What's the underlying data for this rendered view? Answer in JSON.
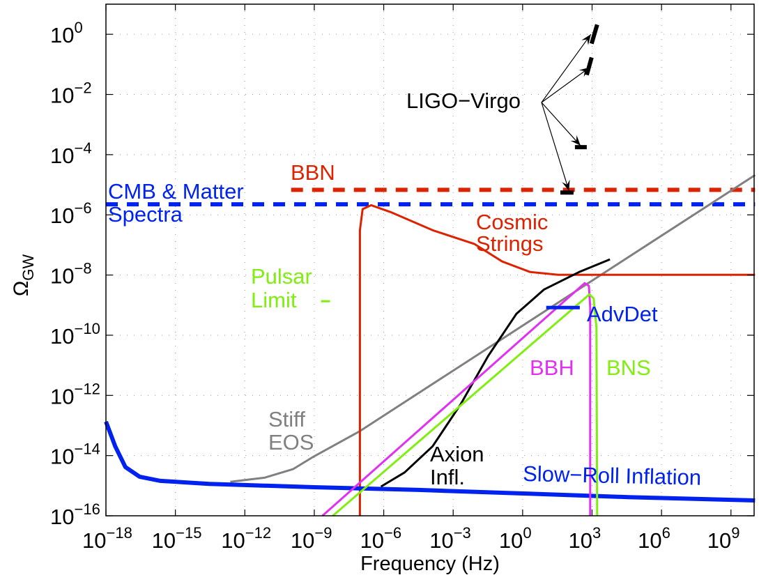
{
  "chart_data": {
    "type": "line",
    "title": "",
    "xlabel": "Frequency (Hz)",
    "ylabel_main": "Ω",
    "ylabel_sub": "GW",
    "xscale": "log",
    "yscale": "log",
    "xlim_log10": [
      -18,
      10
    ],
    "ylim_log10": [
      -16,
      1
    ],
    "grid": true,
    "xticks": [
      {
        "exp": -18,
        "base": "10",
        "sup": "−18"
      },
      {
        "exp": -15,
        "base": "10",
        "sup": "−15"
      },
      {
        "exp": -12,
        "base": "10",
        "sup": "−12"
      },
      {
        "exp": -9,
        "base": "10",
        "sup": "−9"
      },
      {
        "exp": -6,
        "base": "10",
        "sup": "−6"
      },
      {
        "exp": -3,
        "base": "10",
        "sup": "−3"
      },
      {
        "exp": 0,
        "base": "10",
        "sup": "0"
      },
      {
        "exp": 3,
        "base": "10",
        "sup": "3"
      },
      {
        "exp": 6,
        "base": "10",
        "sup": "6"
      },
      {
        "exp": 9,
        "base": "10",
        "sup": "9"
      }
    ],
    "yticks": [
      {
        "exp": 0,
        "base": "10",
        "sup": "0"
      },
      {
        "exp": -2,
        "base": "10",
        "sup": "−2"
      },
      {
        "exp": -4,
        "base": "10",
        "sup": "−4"
      },
      {
        "exp": -6,
        "base": "10",
        "sup": "−6"
      },
      {
        "exp": -8,
        "base": "10",
        "sup": "−8"
      },
      {
        "exp": -10,
        "base": "10",
        "sup": "−10"
      },
      {
        "exp": -12,
        "base": "10",
        "sup": "−12"
      },
      {
        "exp": -14,
        "base": "10",
        "sup": "−14"
      },
      {
        "exp": -16,
        "base": "10",
        "sup": "−16"
      }
    ],
    "series": [
      {
        "name": "BBN",
        "color": "#dd2200",
        "style": "dashed",
        "width": 6,
        "points_log10": [
          [
            -10.0,
            -5.17
          ],
          [
            10.04,
            -5.17
          ]
        ]
      },
      {
        "name": "CMB & Matter Spectra",
        "color": "#0022ee",
        "style": "dashed",
        "width": 6,
        "points_log10": [
          [
            -18.0,
            -5.65
          ],
          [
            10.04,
            -5.65
          ]
        ]
      },
      {
        "name": "Stiff EOS",
        "color": "#808080",
        "style": "solid",
        "width": 3,
        "points_log10": [
          [
            -12.63,
            -14.87
          ],
          [
            -11.13,
            -14.73
          ],
          [
            -9.92,
            -14.45
          ],
          [
            -9.02,
            -14.03
          ],
          [
            -7.06,
            -13.2
          ],
          [
            10.04,
            -4.68
          ]
        ]
      },
      {
        "name": "Cosmic Strings",
        "color": "#dd2200",
        "style": "solid",
        "width": 3,
        "points_log10": [
          [
            -7.03,
            -16.0
          ],
          [
            -7.03,
            -6.51
          ],
          [
            -6.91,
            -5.81
          ],
          [
            -6.54,
            -5.68
          ],
          [
            -5.7,
            -5.91
          ],
          [
            -3.89,
            -6.51
          ],
          [
            -2.08,
            -6.97
          ],
          [
            -0.88,
            -7.55
          ],
          [
            0.33,
            -7.9
          ],
          [
            1.54,
            -7.99
          ],
          [
            10.04,
            -7.99
          ]
        ]
      },
      {
        "name": "Slow-Roll Inflation",
        "color": "#0022ee",
        "style": "solid",
        "width": 6,
        "points_log10": [
          [
            -18.0,
            -12.87
          ],
          [
            -17.6,
            -13.69
          ],
          [
            -17.16,
            -14.38
          ],
          [
            -16.55,
            -14.7
          ],
          [
            -15.65,
            -14.84
          ],
          [
            -13.54,
            -14.94
          ],
          [
            -9.02,
            -15.05
          ],
          [
            -4.49,
            -15.14
          ],
          [
            0.03,
            -15.26
          ],
          [
            4.55,
            -15.38
          ],
          [
            10.04,
            -15.49
          ]
        ]
      },
      {
        "name": "Axion Infl.",
        "color": "#000000",
        "style": "solid",
        "width": 3,
        "points_log10": [
          [
            -6.12,
            -15.03
          ],
          [
            -5.1,
            -14.56
          ],
          [
            -3.89,
            -13.69
          ],
          [
            -2.68,
            -12.3
          ],
          [
            -1.48,
            -10.68
          ],
          [
            -0.27,
            -9.29
          ],
          [
            0.93,
            -8.48
          ],
          [
            2.44,
            -7.9
          ],
          [
            3.77,
            -7.48
          ]
        ]
      },
      {
        "name": "BBH",
        "color": "#e030f0",
        "style": "solid",
        "width": 3,
        "points_log10": [
          [
            -8.65,
            -16.0
          ],
          [
            2.68,
            -8.27
          ],
          [
            2.86,
            -8.36
          ],
          [
            2.92,
            -9.06
          ],
          [
            2.92,
            -16.0
          ]
        ]
      },
      {
        "name": "BNS",
        "color": "#80ee10",
        "style": "solid",
        "width": 3,
        "points_log10": [
          [
            -8.2,
            -16.0
          ],
          [
            2.89,
            -8.64
          ],
          [
            3.07,
            -8.78
          ],
          [
            3.19,
            -9.75
          ],
          [
            3.22,
            -16.0
          ]
        ]
      },
      {
        "name": "Pulsar Limit",
        "color": "#80ee10",
        "style": "solid",
        "width": 3,
        "points_log10": [
          [
            -8.71,
            -8.87
          ],
          [
            -8.32,
            -8.87
          ]
        ]
      },
      {
        "name": "AdvDet",
        "color": "#0022ee",
        "style": "solid",
        "width": 5,
        "points_log10": [
          [
            1.02,
            -9.08
          ],
          [
            2.47,
            -9.08
          ]
        ]
      },
      {
        "name": "LIGO-Virgo S1",
        "color": "#000000",
        "style": "solid",
        "width": 6,
        "points_log10": [
          [
            2.98,
            -0.31
          ],
          [
            3.22,
            0.32
          ]
        ]
      },
      {
        "name": "LIGO-Virgo S2",
        "color": "#000000",
        "style": "solid",
        "width": 6,
        "points_log10": [
          [
            2.77,
            -1.35
          ],
          [
            2.98,
            -0.77
          ]
        ]
      },
      {
        "name": "LIGO-Virgo S3",
        "color": "#000000",
        "style": "solid",
        "width": 6,
        "points_log10": [
          [
            2.26,
            -3.75
          ],
          [
            2.77,
            -3.75
          ]
        ]
      },
      {
        "name": "LIGO-Virgo S4",
        "color": "#000000",
        "style": "solid",
        "width": 6,
        "points_log10": [
          [
            1.63,
            -5.26
          ],
          [
            2.2,
            -5.26
          ]
        ]
      }
    ],
    "annotations": [
      {
        "id": "ligo",
        "text": "LIGO−Virgo",
        "color": "#000000"
      },
      {
        "id": "bbn",
        "text": "BBN",
        "color": "#dd2200"
      },
      {
        "id": "cmb1",
        "text": "CMB & Matter",
        "color": "#0022ee"
      },
      {
        "id": "cmb2",
        "text": "Spectra",
        "color": "#0022ee"
      },
      {
        "id": "cs1",
        "text": "Cosmic",
        "color": "#dd2200"
      },
      {
        "id": "cs2",
        "text": "Strings",
        "color": "#dd2200"
      },
      {
        "id": "pl1",
        "text": "Pulsar",
        "color": "#80ee10"
      },
      {
        "id": "pl2",
        "text": "Limit",
        "color": "#80ee10"
      },
      {
        "id": "adv",
        "text": "AdvDet",
        "color": "#0022ee"
      },
      {
        "id": "bbh",
        "text": "BBH",
        "color": "#e030f0"
      },
      {
        "id": "bns",
        "text": "BNS",
        "color": "#80ee10"
      },
      {
        "id": "eos1",
        "text": "Stiff",
        "color": "#808080"
      },
      {
        "id": "eos2",
        "text": "EOS",
        "color": "#808080"
      },
      {
        "id": "ax1",
        "text": "Axion",
        "color": "#000000"
      },
      {
        "id": "ax2",
        "text": "Infl.",
        "color": "#000000"
      },
      {
        "id": "sr",
        "text": "Slow−Roll Inflation",
        "color": "#0022ee"
      }
    ],
    "ligo_arrow_targets_log10": [
      [
        2.95,
        0.0
      ],
      [
        2.9,
        -1.1
      ],
      [
        2.5,
        -3.7
      ],
      [
        2.0,
        -5.2
      ]
    ]
  }
}
